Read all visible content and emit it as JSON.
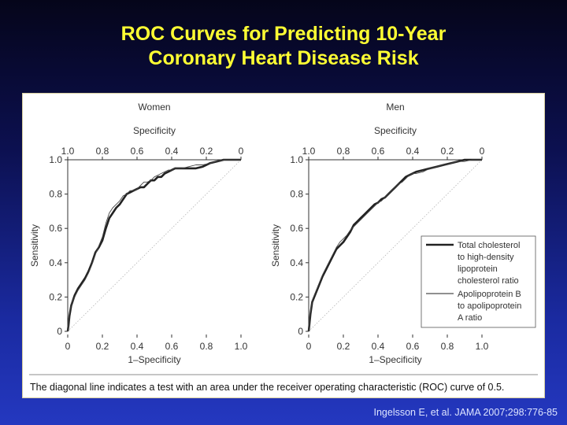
{
  "slide": {
    "title_line1": "ROC Curves for Predicting 10-Year",
    "title_line2": "Coronary Heart Disease Risk",
    "caption": "The diagonal line indicates a test with an area under the receiver operating characteristic (ROC) curve of 0.5.",
    "citation": "Ingelsson E, et al. JAMA 2007;298:776-85"
  },
  "chart_data": [
    {
      "type": "line",
      "title": "Women",
      "xlabel": "1–Specificity",
      "ylabel": "Sensitivity",
      "x2label": "Specificity",
      "xticks": [
        "0",
        "0.2",
        "0.4",
        "0.6",
        "0.8",
        "1.0"
      ],
      "x2ticks": [
        "1.0",
        "0.8",
        "0.6",
        "0.4",
        "0.2",
        "0"
      ],
      "yticks": [
        "0",
        "0.2",
        "0.4",
        "0.6",
        "0.8",
        "1.0"
      ],
      "xlim": [
        0,
        1
      ],
      "ylim": [
        0,
        1
      ],
      "diagonal": true,
      "series": [
        {
          "name": "Total cholesterol to high-density lipoprotein cholesterol ratio",
          "style": "thick",
          "x": [
            0,
            0.005,
            0.01,
            0.02,
            0.04,
            0.06,
            0.08,
            0.1,
            0.12,
            0.14,
            0.16,
            0.18,
            0.2,
            0.22,
            0.24,
            0.26,
            0.28,
            0.3,
            0.32,
            0.34,
            0.36,
            0.38,
            0.4,
            0.42,
            0.44,
            0.46,
            0.48,
            0.5,
            0.52,
            0.54,
            0.56,
            0.58,
            0.6,
            0.62,
            0.66,
            0.7,
            0.74,
            0.78,
            0.82,
            0.86,
            0.9,
            0.94,
            1.0
          ],
          "y": [
            0,
            0.04,
            0.09,
            0.15,
            0.21,
            0.25,
            0.28,
            0.31,
            0.35,
            0.4,
            0.46,
            0.49,
            0.53,
            0.6,
            0.66,
            0.69,
            0.72,
            0.74,
            0.77,
            0.8,
            0.81,
            0.82,
            0.83,
            0.84,
            0.84,
            0.86,
            0.88,
            0.88,
            0.9,
            0.9,
            0.92,
            0.93,
            0.94,
            0.95,
            0.95,
            0.95,
            0.95,
            0.96,
            0.98,
            0.99,
            1.0,
            1.0,
            1.0
          ]
        },
        {
          "name": "Apolipoprotein B to apolipoprotein A ratio",
          "style": "thin",
          "x": [
            0,
            0.005,
            0.01,
            0.02,
            0.04,
            0.06,
            0.08,
            0.1,
            0.12,
            0.14,
            0.16,
            0.18,
            0.2,
            0.22,
            0.24,
            0.26,
            0.28,
            0.3,
            0.32,
            0.34,
            0.36,
            0.38,
            0.4,
            0.42,
            0.44,
            0.46,
            0.48,
            0.5,
            0.52,
            0.54,
            0.56,
            0.58,
            0.6,
            0.62,
            0.66,
            0.7,
            0.74,
            0.78,
            0.82,
            0.86,
            0.9,
            0.94,
            1.0
          ],
          "y": [
            0,
            0.05,
            0.1,
            0.16,
            0.2,
            0.24,
            0.27,
            0.3,
            0.34,
            0.39,
            0.45,
            0.5,
            0.55,
            0.63,
            0.69,
            0.72,
            0.74,
            0.76,
            0.79,
            0.8,
            0.82,
            0.82,
            0.83,
            0.85,
            0.87,
            0.87,
            0.88,
            0.9,
            0.91,
            0.92,
            0.93,
            0.94,
            0.94,
            0.95,
            0.95,
            0.96,
            0.97,
            0.97,
            0.98,
            0.99,
            1.0,
            1.0,
            1.0
          ]
        }
      ]
    },
    {
      "type": "line",
      "title": "Men",
      "xlabel": "1–Specificity",
      "ylabel": "Sensitivity",
      "x2label": "Specificity",
      "xticks": [
        "0",
        "0.2",
        "0.4",
        "0.6",
        "0.8",
        "1.0"
      ],
      "x2ticks": [
        "1.0",
        "0.8",
        "0.6",
        "0.4",
        "0.2",
        "0"
      ],
      "yticks": [
        "0",
        "0.2",
        "0.4",
        "0.6",
        "0.8",
        "1.0"
      ],
      "xlim": [
        0,
        1
      ],
      "ylim": [
        0,
        1
      ],
      "diagonal": true,
      "legend": "right",
      "series": [
        {
          "name": "Total cholesterol to high-density lipoprotein cholesterol ratio",
          "label": "Total cholesterol to high-density lipoprotein cholesterol ratio",
          "style": "thick",
          "x": [
            0,
            0.005,
            0.01,
            0.02,
            0.04,
            0.06,
            0.08,
            0.1,
            0.12,
            0.14,
            0.16,
            0.18,
            0.2,
            0.22,
            0.24,
            0.26,
            0.28,
            0.3,
            0.32,
            0.34,
            0.36,
            0.38,
            0.4,
            0.42,
            0.44,
            0.46,
            0.48,
            0.5,
            0.52,
            0.54,
            0.56,
            0.58,
            0.6,
            0.62,
            0.66,
            0.7,
            0.74,
            0.78,
            0.82,
            0.86,
            0.9,
            0.94,
            1.0
          ],
          "y": [
            0,
            0.05,
            0.1,
            0.17,
            0.22,
            0.27,
            0.32,
            0.36,
            0.4,
            0.44,
            0.48,
            0.5,
            0.52,
            0.55,
            0.58,
            0.62,
            0.64,
            0.66,
            0.68,
            0.7,
            0.72,
            0.74,
            0.75,
            0.77,
            0.78,
            0.8,
            0.82,
            0.84,
            0.86,
            0.88,
            0.9,
            0.91,
            0.92,
            0.93,
            0.94,
            0.95,
            0.96,
            0.97,
            0.98,
            0.99,
            1.0,
            1.0,
            1.0
          ]
        },
        {
          "name": "Apolipoprotein B to apolipoprotein A ratio",
          "label": "Apolipoprotein B to apolipoprotein A ratio",
          "style": "thin",
          "x": [
            0,
            0.005,
            0.01,
            0.02,
            0.04,
            0.06,
            0.08,
            0.1,
            0.12,
            0.14,
            0.16,
            0.18,
            0.2,
            0.22,
            0.24,
            0.26,
            0.28,
            0.3,
            0.32,
            0.34,
            0.36,
            0.38,
            0.4,
            0.42,
            0.44,
            0.46,
            0.48,
            0.5,
            0.52,
            0.54,
            0.56,
            0.58,
            0.6,
            0.62,
            0.66,
            0.7,
            0.74,
            0.78,
            0.82,
            0.86,
            0.9,
            0.94,
            1.0
          ],
          "y": [
            0,
            0.06,
            0.11,
            0.18,
            0.23,
            0.28,
            0.33,
            0.37,
            0.41,
            0.45,
            0.49,
            0.52,
            0.54,
            0.56,
            0.59,
            0.61,
            0.63,
            0.65,
            0.67,
            0.69,
            0.71,
            0.73,
            0.75,
            0.76,
            0.78,
            0.8,
            0.82,
            0.84,
            0.86,
            0.87,
            0.89,
            0.91,
            0.92,
            0.92,
            0.93,
            0.95,
            0.96,
            0.97,
            0.98,
            0.99,
            0.99,
            1.0,
            1.0
          ]
        }
      ]
    }
  ]
}
